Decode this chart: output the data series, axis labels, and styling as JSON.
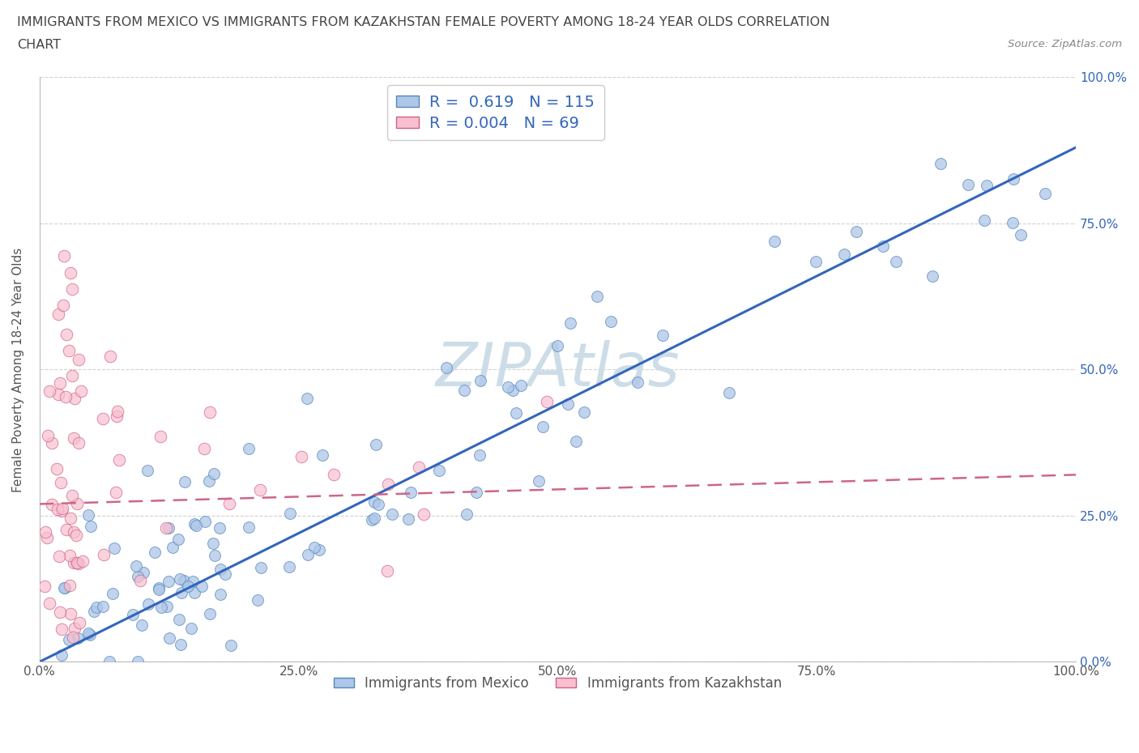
{
  "title_line1": "IMMIGRANTS FROM MEXICO VS IMMIGRANTS FROM KAZAKHSTAN FEMALE POVERTY AMONG 18-24 YEAR OLDS CORRELATION",
  "title_line2": "CHART",
  "source_text": "Source: ZipAtlas.com",
  "ylabel": "Female Poverty Among 18-24 Year Olds",
  "xlim": [
    0.0,
    1.0
  ],
  "ylim": [
    0.0,
    1.0
  ],
  "xtick_labels": [
    "0.0%",
    "25.0%",
    "50.0%",
    "75.0%",
    "100.0%"
  ],
  "xtick_vals": [
    0.0,
    0.25,
    0.5,
    0.75,
    1.0
  ],
  "ytick_labels": [
    "",
    "",
    "",
    "",
    ""
  ],
  "ytick_vals": [
    0.0,
    0.25,
    0.5,
    0.75,
    1.0
  ],
  "right_ytick_labels": [
    "0.0%",
    "25.0%",
    "50.0%",
    "75.0%",
    "100.0%"
  ],
  "right_ytick_vals": [
    0.0,
    0.25,
    0.5,
    0.75,
    1.0
  ],
  "mexico_color": "#aec6e8",
  "mexico_edge_color": "#5588bb",
  "kazakhstan_color": "#f8c0d0",
  "kazakhstan_edge_color": "#d06080",
  "mexico_R": 0.619,
  "mexico_N": 115,
  "kazakhstan_R": 0.004,
  "kazakhstan_N": 69,
  "legend_label_mexico": "Immigrants from Mexico",
  "legend_label_kazakhstan": "Immigrants from Kazakhstan",
  "trendline_mexico_color": "#3366bb",
  "trendline_kazakhstan_color": "#cc6688",
  "watermark": "ZIPAtlas",
  "watermark_color": "#ccdde8",
  "background_color": "#ffffff",
  "title_color": "#444444",
  "label_color": "#3366bb",
  "seed": 12345
}
